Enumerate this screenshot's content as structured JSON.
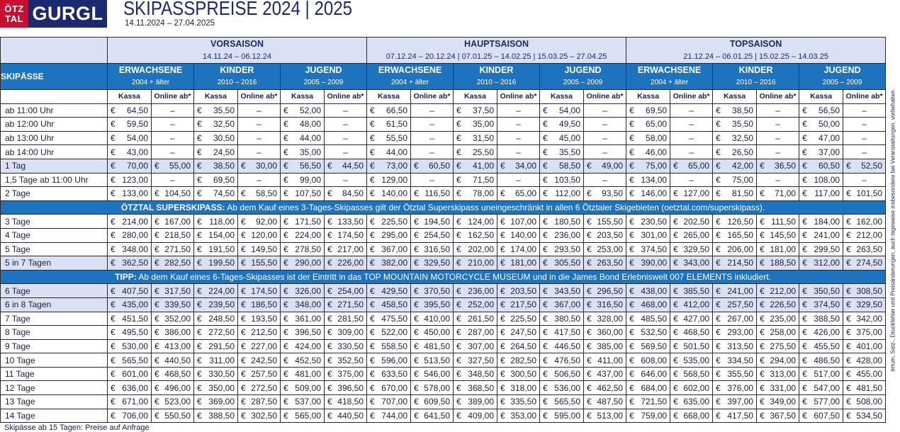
{
  "header": {
    "logo_top": "ÖTZ",
    "logo_bottom": "TAL",
    "logo_brand": "GURGL",
    "title": "SKIPASSPREISE 2024 | 2025",
    "dates": "14.11.2024 – 27.04.2025"
  },
  "seasons": [
    {
      "name": "VORSAISON",
      "dates": "14.11.24 – 06.12.24"
    },
    {
      "name": "HAUPTSAISON",
      "dates": "07.12.24 – 20.12.24 | 07.01.25 – 14.02.25 | 15.03.25 – 27.04.25"
    },
    {
      "name": "TOPSAISON",
      "dates": "21.12.24 – 06.01.25 | 15.02.25 – 14.03.25"
    }
  ],
  "row_header_label": "SKIPÄSSE",
  "age_groups": [
    {
      "name": "ERWACHSENE",
      "range": "2004 + älter"
    },
    {
      "name": "KINDER",
      "range": "2010 – 2016"
    },
    {
      "name": "JUGEND",
      "range": "2005 – 2009"
    }
  ],
  "sub_headers": {
    "kassa": "Kassa",
    "online": "Online ab*"
  },
  "rows": [
    {
      "label": "ab 11:00 Uhr",
      "hl": false,
      "v": [
        "64,50",
        "–",
        "35,50",
        "–",
        "52,00",
        "–",
        "66,50",
        "–",
        "37,50",
        "–",
        "54,00",
        "–",
        "69,50",
        "–",
        "38,50",
        "–",
        "56,50",
        "–"
      ]
    },
    {
      "label": "ab 12:00 Uhr",
      "hl": false,
      "v": [
        "59,50",
        "–",
        "32,50",
        "–",
        "48,00",
        "–",
        "61,50",
        "–",
        "35,00",
        "–",
        "49,50",
        "–",
        "65,00",
        "–",
        "35,50",
        "–",
        "50,00",
        "–"
      ]
    },
    {
      "label": "ab 13:00 Uhr",
      "hl": false,
      "v": [
        "54,00",
        "–",
        "30,50",
        "–",
        "44,00",
        "–",
        "55,50",
        "–",
        "31,50",
        "–",
        "45,00",
        "–",
        "58,00",
        "–",
        "32,50",
        "–",
        "47,00",
        "–"
      ]
    },
    {
      "label": "ab 14:00 Uhr",
      "hl": false,
      "v": [
        "43,00",
        "–",
        "24,50",
        "–",
        "35,00",
        "–",
        "44,00",
        "–",
        "25,50",
        "–",
        "35,50",
        "–",
        "46,00",
        "–",
        "26,50",
        "–",
        "37,00",
        "–"
      ]
    },
    {
      "label": "1 Tag",
      "hl": true,
      "v": [
        "70,00",
        "55,00",
        "38,50",
        "30,00",
        "56,50",
        "44,50",
        "73,00",
        "60,50",
        "41,00",
        "34,00",
        "58,50",
        "49,00",
        "75,00",
        "65,00",
        "42,00",
        "36,50",
        "60,50",
        "52,50"
      ]
    },
    {
      "label": "1,5 Tage ab 11:00 Uhr",
      "hl": false,
      "v": [
        "123,00",
        "–",
        "69,50",
        "–",
        "99,00",
        "–",
        "129,00",
        "–",
        "71,50",
        "–",
        "103,50",
        "–",
        "134,00",
        "–",
        "75,00",
        "–",
        "108,00",
        "–"
      ]
    },
    {
      "label": "2 Tage",
      "hl": false,
      "v": [
        "133,00",
        "104,50",
        "74,50",
        "58,50",
        "107,50",
        "84,50",
        "140,00",
        "116,50",
        "78,00",
        "65,00",
        "112,00",
        "93,50",
        "146,00",
        "127,00",
        "81,50",
        "71,00",
        "117,00",
        "101,50"
      ]
    },
    {
      "banner": true,
      "bold": "ÖTZTAL SUPERSKIPASS:",
      "text": " Ab dem Kauf eines 3-Tages-Skipasses gilt der Ötztal Superskipass uneingeschränkt in allen 6 Ötztaler Skigebieten (oetztal.com/superskipass)."
    },
    {
      "label": "3 Tage",
      "hl": false,
      "v": [
        "214,00",
        "167,00",
        "118,00",
        "92,00",
        "171,50",
        "133,50",
        "225,50",
        "194,50",
        "124,00",
        "107,00",
        "180,50",
        "155,50",
        "230,50",
        "202,50",
        "126,50",
        "111,50",
        "184,00",
        "162,00"
      ]
    },
    {
      "label": "4 Tage",
      "hl": false,
      "v": [
        "280,00",
        "218,50",
        "154,00",
        "120,00",
        "224,00",
        "174,50",
        "295,00",
        "254,50",
        "162,50",
        "140,00",
        "236,00",
        "203,50",
        "301,00",
        "265,00",
        "165,50",
        "145,50",
        "241,00",
        "212,00"
      ]
    },
    {
      "label": "5 Tage",
      "hl": false,
      "v": [
        "348,00",
        "271,50",
        "191,50",
        "149,50",
        "278,50",
        "217,00",
        "367,00",
        "316,50",
        "202,00",
        "174,00",
        "293,50",
        "253,00",
        "374,50",
        "329,50",
        "206,00",
        "181,00",
        "299,50",
        "263,50"
      ]
    },
    {
      "label": "5 in 7 Tagen",
      "hl": true,
      "v": [
        "362,50",
        "282,50",
        "199,50",
        "155,50",
        "290,00",
        "226,00",
        "382,00",
        "329,50",
        "210,00",
        "181,00",
        "305,50",
        "263,50",
        "390,00",
        "343,00",
        "214,50",
        "188,50",
        "312,00",
        "274,50"
      ]
    },
    {
      "banner": true,
      "bold": "TIPP:",
      "text": " Ab dem Kauf eines 6-Tages-Skipasses ist der Eintritt in das TOP MOUNTAIN MOTORCYCLE MUSEUM und in die James Bond Erlebniswelt 007 ELEMENTS inkludiert."
    },
    {
      "label": "6 Tage",
      "hl": true,
      "v": [
        "407,50",
        "317,50",
        "224,00",
        "174,50",
        "326,00",
        "254,00",
        "429,50",
        "370,50",
        "236,00",
        "203,50",
        "343,50",
        "296,50",
        "438,00",
        "385,50",
        "241,00",
        "212,00",
        "350,50",
        "308,50"
      ]
    },
    {
      "label": "6 in 8 Tagen",
      "hl": true,
      "v": [
        "435,00",
        "339,50",
        "239,50",
        "186,50",
        "348,00",
        "271,50",
        "458,50",
        "395,50",
        "252,00",
        "217,50",
        "367,00",
        "316,50",
        "468,00",
        "412,00",
        "257,50",
        "226,50",
        "374,50",
        "329,50"
      ]
    },
    {
      "label": "7 Tage",
      "hl": false,
      "v": [
        "451,50",
        "352,00",
        "248,50",
        "193,50",
        "361,00",
        "281,50",
        "475,50",
        "410,00",
        "261,50",
        "225,50",
        "380,50",
        "328,00",
        "485,50",
        "427,00",
        "267,00",
        "235,00",
        "388,50",
        "342,00"
      ]
    },
    {
      "label": "8 Tage",
      "hl": false,
      "v": [
        "495,50",
        "386,00",
        "272,50",
        "212,50",
        "396,50",
        "309,00",
        "522,00",
        "450,00",
        "287,00",
        "247,50",
        "417,50",
        "360,00",
        "532,50",
        "468,50",
        "293,00",
        "258,00",
        "426,00",
        "375,00"
      ]
    },
    {
      "label": "9 Tage",
      "hl": false,
      "v": [
        "530,00",
        "413,00",
        "291,50",
        "227,00",
        "424,00",
        "330,50",
        "558,50",
        "481,50",
        "307,00",
        "264,50",
        "446,50",
        "385,00",
        "569,50",
        "501,50",
        "313,50",
        "275,50",
        "455,50",
        "401,00"
      ]
    },
    {
      "label": "10 Tage",
      "hl": false,
      "v": [
        "565,50",
        "440,50",
        "311,00",
        "242,50",
        "452,50",
        "352,50",
        "596,00",
        "513,50",
        "327,50",
        "282,50",
        "476,50",
        "411,00",
        "608,00",
        "535,00",
        "334,50",
        "294,00",
        "486,50",
        "428,00"
      ]
    },
    {
      "label": "11 Tage",
      "hl": false,
      "v": [
        "601,00",
        "468,50",
        "330,50",
        "257,50",
        "481,00",
        "375,00",
        "633,50",
        "546,00",
        "348,50",
        "300,50",
        "506,50",
        "437,00",
        "646,00",
        "568,50",
        "355,50",
        "313,00",
        "517,00",
        "455,00"
      ]
    },
    {
      "label": "12 Tage",
      "hl": false,
      "v": [
        "636,00",
        "496,00",
        "350,00",
        "272,50",
        "509,00",
        "396,50",
        "670,00",
        "578,00",
        "368,50",
        "318,00",
        "536,00",
        "462,50",
        "684,00",
        "602,00",
        "376,00",
        "331,00",
        "547,00",
        "481,50"
      ]
    },
    {
      "label": "13 Tage",
      "hl": false,
      "v": [
        "671,00",
        "523,00",
        "369,00",
        "287,50",
        "537,00",
        "418,50",
        "707,00",
        "609,50",
        "389,00",
        "335,50",
        "565,50",
        "487,50",
        "721,50",
        "635,00",
        "397,00",
        "349,00",
        "577,00",
        "508,00"
      ]
    },
    {
      "label": "14 Tage",
      "hl": false,
      "v": [
        "706,00",
        "550,50",
        "388,50",
        "302,50",
        "565,00",
        "440,50",
        "744,00",
        "641,50",
        "409,00",
        "353,00",
        "595,00",
        "513,00",
        "759,00",
        "668,00",
        "417,50",
        "367,50",
        "607,50",
        "534,50"
      ]
    }
  ],
  "currency": "€",
  "side_note": "Irrtum, Satz-, Druckfehler und Preisänderungen, auch tageweise insbesondere bei Veranstaltungen, vorbehalten.",
  "footer_note": "Skipässe ab 15 Tagen: Preise auf Anfrage",
  "colors": {
    "brand_red": "#c8102e",
    "brand_navy": "#1b2a6e",
    "header_blue": "#1e73be",
    "highlight": "#d9e1f2"
  }
}
